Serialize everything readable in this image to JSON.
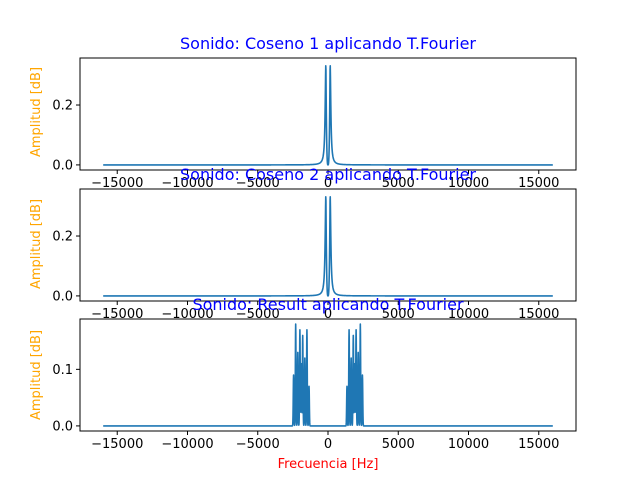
{
  "chart_data": [
    {
      "type": "line",
      "title": "Sonido: Coseno 1 aplicando T.Fourier",
      "xlabel": "",
      "ylabel": "Amplitud [dB]",
      "xlim": [
        -17650,
        17650
      ],
      "ylim": [
        -0.017,
        0.357
      ],
      "xticks": [
        -15000,
        -10000,
        -5000,
        0,
        5000,
        10000,
        15000
      ],
      "xtick_labels": [
        "−15000",
        "−10000",
        "−5000",
        "0",
        "5000",
        "10000",
        "15000"
      ],
      "yticks": [
        0.0,
        0.2
      ],
      "ytick_labels": [
        "0.0",
        "0.2"
      ],
      "grid": false,
      "series": [
        {
          "color": "#1f77b4",
          "profile": "lorentz_pair",
          "x_range": [
            -16000,
            16000
          ],
          "peaks": [
            {
              "x": -150,
              "y": 0.34
            },
            {
              "x": 150,
              "y": 0.34
            }
          ]
        }
      ]
    },
    {
      "type": "line",
      "title": "Sonido: Coseno 2 aplicando T.Fourier",
      "xlabel": "",
      "ylabel": "Amplitud [dB]",
      "xlim": [
        -17650,
        17650
      ],
      "ylim": [
        -0.017,
        0.357
      ],
      "xticks": [
        -15000,
        -10000,
        -5000,
        0,
        5000,
        10000,
        15000
      ],
      "xtick_labels": [
        "−15000",
        "−10000",
        "−5000",
        "0",
        "5000",
        "10000",
        "15000"
      ],
      "yticks": [
        0.0,
        0.2
      ],
      "ytick_labels": [
        "0.0",
        "0.2"
      ],
      "grid": false,
      "series": [
        {
          "color": "#1f77b4",
          "profile": "lorentz_pair",
          "x_range": [
            -16000,
            16000
          ],
          "peaks": [
            {
              "x": -150,
              "y": 0.34
            },
            {
              "x": 150,
              "y": 0.34
            }
          ]
        }
      ]
    },
    {
      "type": "line",
      "title": "Sonido: Result aplicando T.Fourier",
      "xlabel": "Frecuencia [Hz]",
      "ylabel": "Amplitud [dB]",
      "xlim": [
        -17650,
        17650
      ],
      "ylim": [
        -0.009,
        0.189
      ],
      "xticks": [
        -15000,
        -10000,
        -5000,
        0,
        5000,
        10000,
        15000
      ],
      "xtick_labels": [
        "−15000",
        "−10000",
        "−5000",
        "0",
        "5000",
        "10000",
        "15000"
      ],
      "yticks": [
        0.0,
        0.1
      ],
      "ytick_labels": [
        "0.0",
        "0.1"
      ],
      "grid": false,
      "series": [
        {
          "color": "#1f77b4",
          "profile": "spectral_clusters",
          "x_range": [
            -16000,
            16000
          ],
          "peaks": [
            {
              "x": -2450,
              "y": 0.09
            },
            {
              "x": -2300,
              "y": 0.18
            },
            {
              "x": -2150,
              "y": 0.13
            },
            {
              "x": -2000,
              "y": 0.17
            },
            {
              "x": -1900,
              "y": 0.11
            },
            {
              "x": -1800,
              "y": 0.16
            },
            {
              "x": -1650,
              "y": 0.12
            },
            {
              "x": -1500,
              "y": 0.17
            },
            {
              "x": -1350,
              "y": 0.07
            },
            {
              "x": 1350,
              "y": 0.07
            },
            {
              "x": 1500,
              "y": 0.17
            },
            {
              "x": 1650,
              "y": 0.12
            },
            {
              "x": 1800,
              "y": 0.16
            },
            {
              "x": 1900,
              "y": 0.11
            },
            {
              "x": 2000,
              "y": 0.17
            },
            {
              "x": 2150,
              "y": 0.13
            },
            {
              "x": 2300,
              "y": 0.18
            },
            {
              "x": 2450,
              "y": 0.09
            }
          ]
        }
      ]
    }
  ]
}
